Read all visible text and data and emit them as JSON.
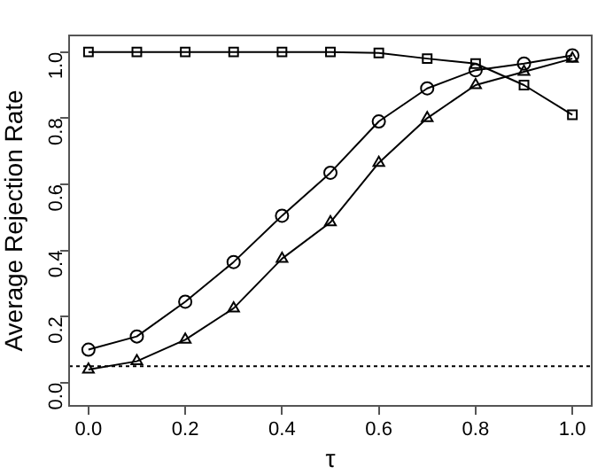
{
  "chart_data": {
    "type": "line",
    "xlabel": "τ",
    "ylabel": "Average Rejection Rate",
    "x": [
      0,
      0.1,
      0.2,
      0.3,
      0.4,
      0.5,
      0.6,
      0.7,
      0.8,
      0.9,
      1.0
    ],
    "series": [
      {
        "color": "#000000",
        "marker": "circle",
        "values": [
          0.1,
          0.14,
          0.245,
          0.365,
          0.505,
          0.635,
          0.79,
          0.89,
          0.945,
          0.965,
          0.99
        ]
      },
      {
        "color": "#000000",
        "marker": "triangle",
        "values": [
          0.04,
          0.065,
          0.13,
          0.225,
          0.375,
          0.485,
          0.665,
          0.8,
          0.9,
          0.94,
          0.98
        ]
      },
      {
        "color": "#000000",
        "marker": "square",
        "values": [
          1.0,
          1.0,
          1.0,
          1.0,
          1.0,
          1.0,
          0.997,
          0.98,
          0.965,
          0.9,
          0.81
        ]
      }
    ],
    "xlim": [
      -0.04,
      1.04
    ],
    "ylim": [
      -0.07,
      1.05
    ],
    "xticks": [
      {
        "value": 0,
        "label": "0.0"
      },
      0.2,
      0.4,
      0.6,
      0.8,
      {
        "value": 1,
        "label": "1.0"
      }
    ],
    "yticks": [
      {
        "value": 0,
        "label": "0.0"
      },
      0.2,
      0.4,
      0.6,
      0.8,
      {
        "value": 1,
        "label": "1.0"
      }
    ],
    "ref_lines": [
      {
        "axis": "y",
        "value": 0.05,
        "line_style": "dotted"
      }
    ],
    "grid": false,
    "legend": false
  }
}
